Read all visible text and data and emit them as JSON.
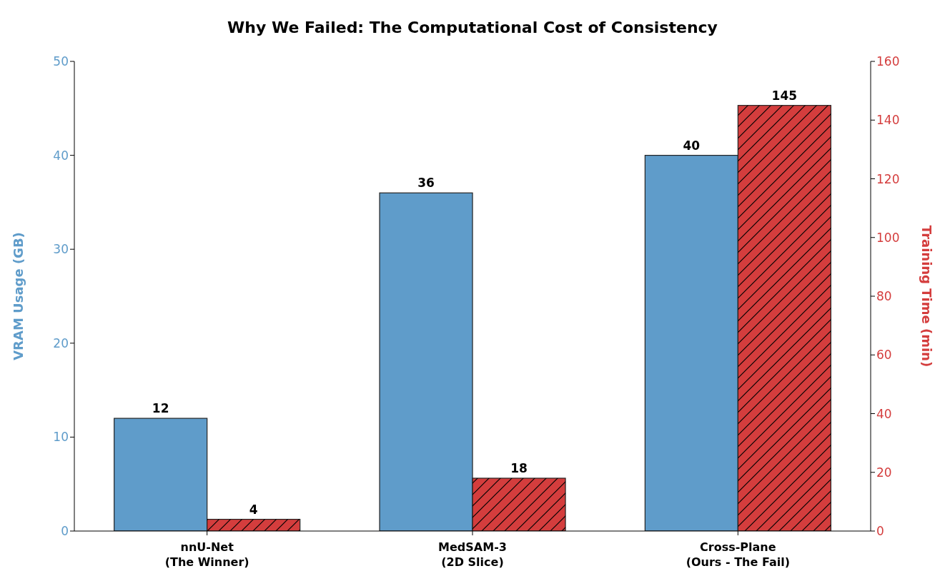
{
  "chart_data": {
    "type": "bar",
    "title": "Why We Failed: The Computational Cost of Consistency",
    "categories": [
      "nnU-Net\n(The Winner)",
      "MedSAM-3\n(2D Slice)",
      "Cross-Plane\n(Ours - The Fail)"
    ],
    "ylabel": "VRAM Usage (GB)",
    "y2label": "Training Time (min)",
    "series": [
      {
        "color": "#5f9cca",
        "values": [
          12,
          36,
          40
        ]
      },
      {
        "color": "#d43d3d",
        "values": [
          4,
          18,
          145
        ],
        "axis": "y2"
      }
    ],
    "ylim": [
      0,
      50
    ],
    "yticks": [
      0,
      10,
      20,
      30,
      40,
      50
    ],
    "y2lim": [
      0,
      160
    ],
    "y2ticks": [
      0,
      20,
      40,
      60,
      80,
      100,
      120,
      140,
      160
    ],
    "data_labels": true
  }
}
